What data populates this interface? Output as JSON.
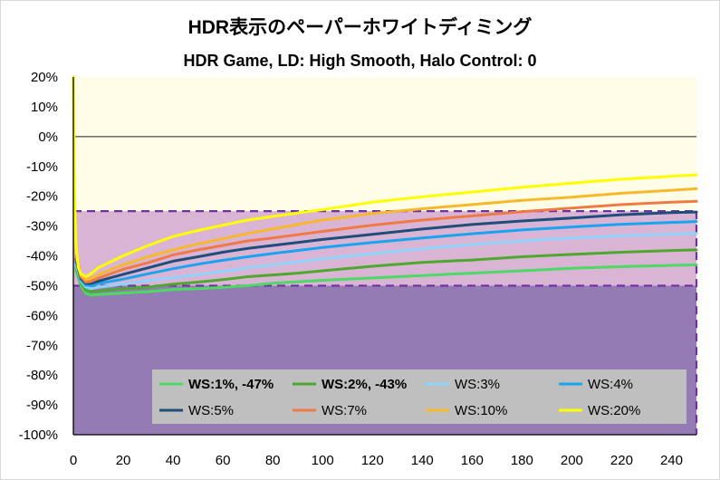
{
  "chart_data": {
    "type": "line",
    "title": "HDR表示のペーパーホワイトディミング",
    "subtitle": "HDR Game, LD: High Smooth, Halo Control: 0",
    "xlabel": "",
    "ylabel": "",
    "xlim": [
      0,
      250
    ],
    "ylim": [
      -100,
      20
    ],
    "x_ticks": [
      0,
      20,
      40,
      60,
      80,
      100,
      120,
      140,
      160,
      180,
      200,
      220,
      240
    ],
    "y_ticks": [
      20,
      10,
      0,
      -10,
      -20,
      -30,
      -40,
      -50,
      -60,
      -70,
      -80,
      -90,
      -100
    ],
    "y_tick_labels": [
      "20%",
      "10%",
      "0%",
      "-10%",
      "-20%",
      "-30%",
      "-40%",
      "-50%",
      "-60%",
      "-70%",
      "-80%",
      "-90%",
      "-100%"
    ],
    "colors": {
      "plot_background": "#fffde8",
      "band_light": "#d9b4d4",
      "band_dark": "#957bb4",
      "dash_line": "#7030a0",
      "zero_line": "#595959",
      "legend_background": "#bfbfbf"
    },
    "reference_bands": [
      {
        "name": "light-band",
        "from": -50,
        "to": -25
      },
      {
        "name": "dark-band",
        "from": -100,
        "to": -50
      }
    ],
    "reference_lines": [
      -25,
      -50
    ],
    "series": [
      {
        "name": "WS:1%, -47%",
        "color": "#4cd964",
        "bold": true,
        "points": [
          [
            1,
            -45
          ],
          [
            3,
            -50
          ],
          [
            5,
            -52.5
          ],
          [
            7,
            -53.2
          ],
          [
            10,
            -53
          ],
          [
            20,
            -52.5
          ],
          [
            30,
            -52
          ],
          [
            40,
            -51.3
          ],
          [
            50,
            -51
          ],
          [
            60,
            -50.6
          ],
          [
            70,
            -50
          ],
          [
            80,
            -49.2
          ],
          [
            90,
            -48.7
          ],
          [
            100,
            -48.2
          ],
          [
            120,
            -47.4
          ],
          [
            140,
            -46.6
          ],
          [
            160,
            -45.8
          ],
          [
            180,
            -45
          ],
          [
            200,
            -44.2
          ],
          [
            220,
            -43.6
          ],
          [
            240,
            -43.2
          ],
          [
            250,
            -43
          ]
        ]
      },
      {
        "name": "WS:2%, -43%",
        "color": "#4ea72e",
        "bold": true,
        "points": [
          [
            1,
            -44
          ],
          [
            3,
            -49
          ],
          [
            5,
            -51.5
          ],
          [
            7,
            -52
          ],
          [
            10,
            -51.8
          ],
          [
            20,
            -51
          ],
          [
            30,
            -50.5
          ],
          [
            40,
            -49.5
          ],
          [
            50,
            -48.8
          ],
          [
            60,
            -48
          ],
          [
            70,
            -47
          ],
          [
            80,
            -46.4
          ],
          [
            90,
            -45.8
          ],
          [
            100,
            -45
          ],
          [
            120,
            -43.5
          ],
          [
            140,
            -42.2
          ],
          [
            160,
            -41.4
          ],
          [
            180,
            -40.3
          ],
          [
            200,
            -39.5
          ],
          [
            220,
            -38.8
          ],
          [
            240,
            -38.2
          ],
          [
            250,
            -38
          ]
        ]
      },
      {
        "name": "WS:3%",
        "color": "#8fd3fa",
        "bold": false,
        "points": [
          [
            1,
            -43
          ],
          [
            3,
            -48.5
          ],
          [
            5,
            -50.5
          ],
          [
            7,
            -51
          ],
          [
            10,
            -50.5
          ],
          [
            20,
            -49.5
          ],
          [
            30,
            -48.3
          ],
          [
            40,
            -47.3
          ],
          [
            50,
            -46.3
          ],
          [
            60,
            -45.2
          ],
          [
            70,
            -44
          ],
          [
            80,
            -43
          ],
          [
            90,
            -42
          ],
          [
            100,
            -41
          ],
          [
            120,
            -39.3
          ],
          [
            140,
            -37.6
          ],
          [
            160,
            -36.2
          ],
          [
            180,
            -35
          ],
          [
            200,
            -34
          ],
          [
            220,
            -33.3
          ],
          [
            240,
            -32.7
          ],
          [
            250,
            -32.5
          ]
        ]
      },
      {
        "name": "WS:4%",
        "color": "#1aa4f0",
        "bold": false,
        "points": [
          [
            1,
            -42
          ],
          [
            3,
            -48
          ],
          [
            5,
            -49.8
          ],
          [
            7,
            -50
          ],
          [
            10,
            -49.3
          ],
          [
            20,
            -47.8
          ],
          [
            30,
            -46
          ],
          [
            40,
            -44.3
          ],
          [
            50,
            -42.8
          ],
          [
            60,
            -41.5
          ],
          [
            70,
            -40.3
          ],
          [
            80,
            -39.2
          ],
          [
            90,
            -38.2
          ],
          [
            100,
            -37.2
          ],
          [
            120,
            -35.5
          ],
          [
            140,
            -34
          ],
          [
            160,
            -32.6
          ],
          [
            180,
            -31.3
          ],
          [
            200,
            -30.3
          ],
          [
            220,
            -29.4
          ],
          [
            240,
            -28.8
          ],
          [
            250,
            -28.5
          ]
        ]
      },
      {
        "name": "WS:5%",
        "color": "#1f4e79",
        "bold": false,
        "points": [
          [
            1,
            -41
          ],
          [
            3,
            -47.5
          ],
          [
            5,
            -49.2
          ],
          [
            7,
            -49.3
          ],
          [
            10,
            -48.5
          ],
          [
            20,
            -46.2
          ],
          [
            30,
            -44
          ],
          [
            40,
            -41.8
          ],
          [
            50,
            -40.3
          ],
          [
            60,
            -38.8
          ],
          [
            70,
            -37.5
          ],
          [
            80,
            -36.5
          ],
          [
            90,
            -35.5
          ],
          [
            100,
            -34.5
          ],
          [
            120,
            -32.8
          ],
          [
            140,
            -31
          ],
          [
            160,
            -29.5
          ],
          [
            180,
            -28.3
          ],
          [
            200,
            -27.3
          ],
          [
            220,
            -26.2
          ],
          [
            240,
            -25.5
          ],
          [
            250,
            -25.3
          ]
        ]
      },
      {
        "name": "WS:7%",
        "color": "#f07a45",
        "bold": false,
        "points": [
          [
            1,
            -40
          ],
          [
            3,
            -47
          ],
          [
            5,
            -48.8
          ],
          [
            7,
            -48.6
          ],
          [
            10,
            -47.5
          ],
          [
            20,
            -44.5
          ],
          [
            30,
            -42.3
          ],
          [
            40,
            -39.7
          ],
          [
            50,
            -38
          ],
          [
            60,
            -36.5
          ],
          [
            70,
            -35
          ],
          [
            80,
            -34
          ],
          [
            90,
            -32.9
          ],
          [
            100,
            -31.8
          ],
          [
            120,
            -29.7
          ],
          [
            140,
            -28
          ],
          [
            160,
            -26.6
          ],
          [
            180,
            -25.2
          ],
          [
            200,
            -24
          ],
          [
            220,
            -22.8
          ],
          [
            240,
            -22
          ],
          [
            250,
            -21.7
          ]
        ]
      },
      {
        "name": "WS:10%",
        "color": "#f7b82b",
        "bold": false,
        "points": [
          [
            1,
            -38
          ],
          [
            3,
            -46.5
          ],
          [
            5,
            -48
          ],
          [
            7,
            -47.6
          ],
          [
            10,
            -46.3
          ],
          [
            20,
            -43
          ],
          [
            30,
            -40.3
          ],
          [
            40,
            -38
          ],
          [
            50,
            -36
          ],
          [
            60,
            -34.3
          ],
          [
            70,
            -32.5
          ],
          [
            80,
            -31
          ],
          [
            90,
            -29.5
          ],
          [
            100,
            -28
          ],
          [
            120,
            -25.8
          ],
          [
            140,
            -24.2
          ],
          [
            160,
            -22.8
          ],
          [
            180,
            -21.4
          ],
          [
            200,
            -20.3
          ],
          [
            220,
            -19
          ],
          [
            240,
            -18
          ],
          [
            250,
            -17.5
          ]
        ]
      },
      {
        "name": "WS:20%",
        "color": "#ffff00",
        "bold": false,
        "points": [
          [
            0,
            20
          ],
          [
            0.5,
            -20
          ],
          [
            1,
            -36
          ],
          [
            2,
            -44
          ],
          [
            3,
            -46
          ],
          [
            4,
            -46.5
          ],
          [
            5,
            -47
          ],
          [
            7,
            -46
          ],
          [
            10,
            -44
          ],
          [
            20,
            -40
          ],
          [
            30,
            -36.5
          ],
          [
            40,
            -33.5
          ],
          [
            50,
            -31.5
          ],
          [
            60,
            -29.7
          ],
          [
            70,
            -28
          ],
          [
            80,
            -26.8
          ],
          [
            90,
            -25.6
          ],
          [
            100,
            -24.5
          ],
          [
            120,
            -22
          ],
          [
            140,
            -20.2
          ],
          [
            160,
            -18.6
          ],
          [
            180,
            -17
          ],
          [
            200,
            -15.6
          ],
          [
            220,
            -14.3
          ],
          [
            240,
            -13.3
          ],
          [
            250,
            -12.8
          ]
        ]
      }
    ],
    "legend": [
      {
        "label": "WS:1%, -47%",
        "series": 0
      },
      {
        "label": "WS:2%, -43%",
        "series": 1
      },
      {
        "label": "WS:3%",
        "series": 2
      },
      {
        "label": "WS:4%",
        "series": 3
      },
      {
        "label": "WS:5%",
        "series": 4
      },
      {
        "label": "WS:7%",
        "series": 5
      },
      {
        "label": "WS:10%",
        "series": 6
      },
      {
        "label": "WS:20%",
        "series": 7
      }
    ],
    "legend_position": "bottom-right"
  }
}
